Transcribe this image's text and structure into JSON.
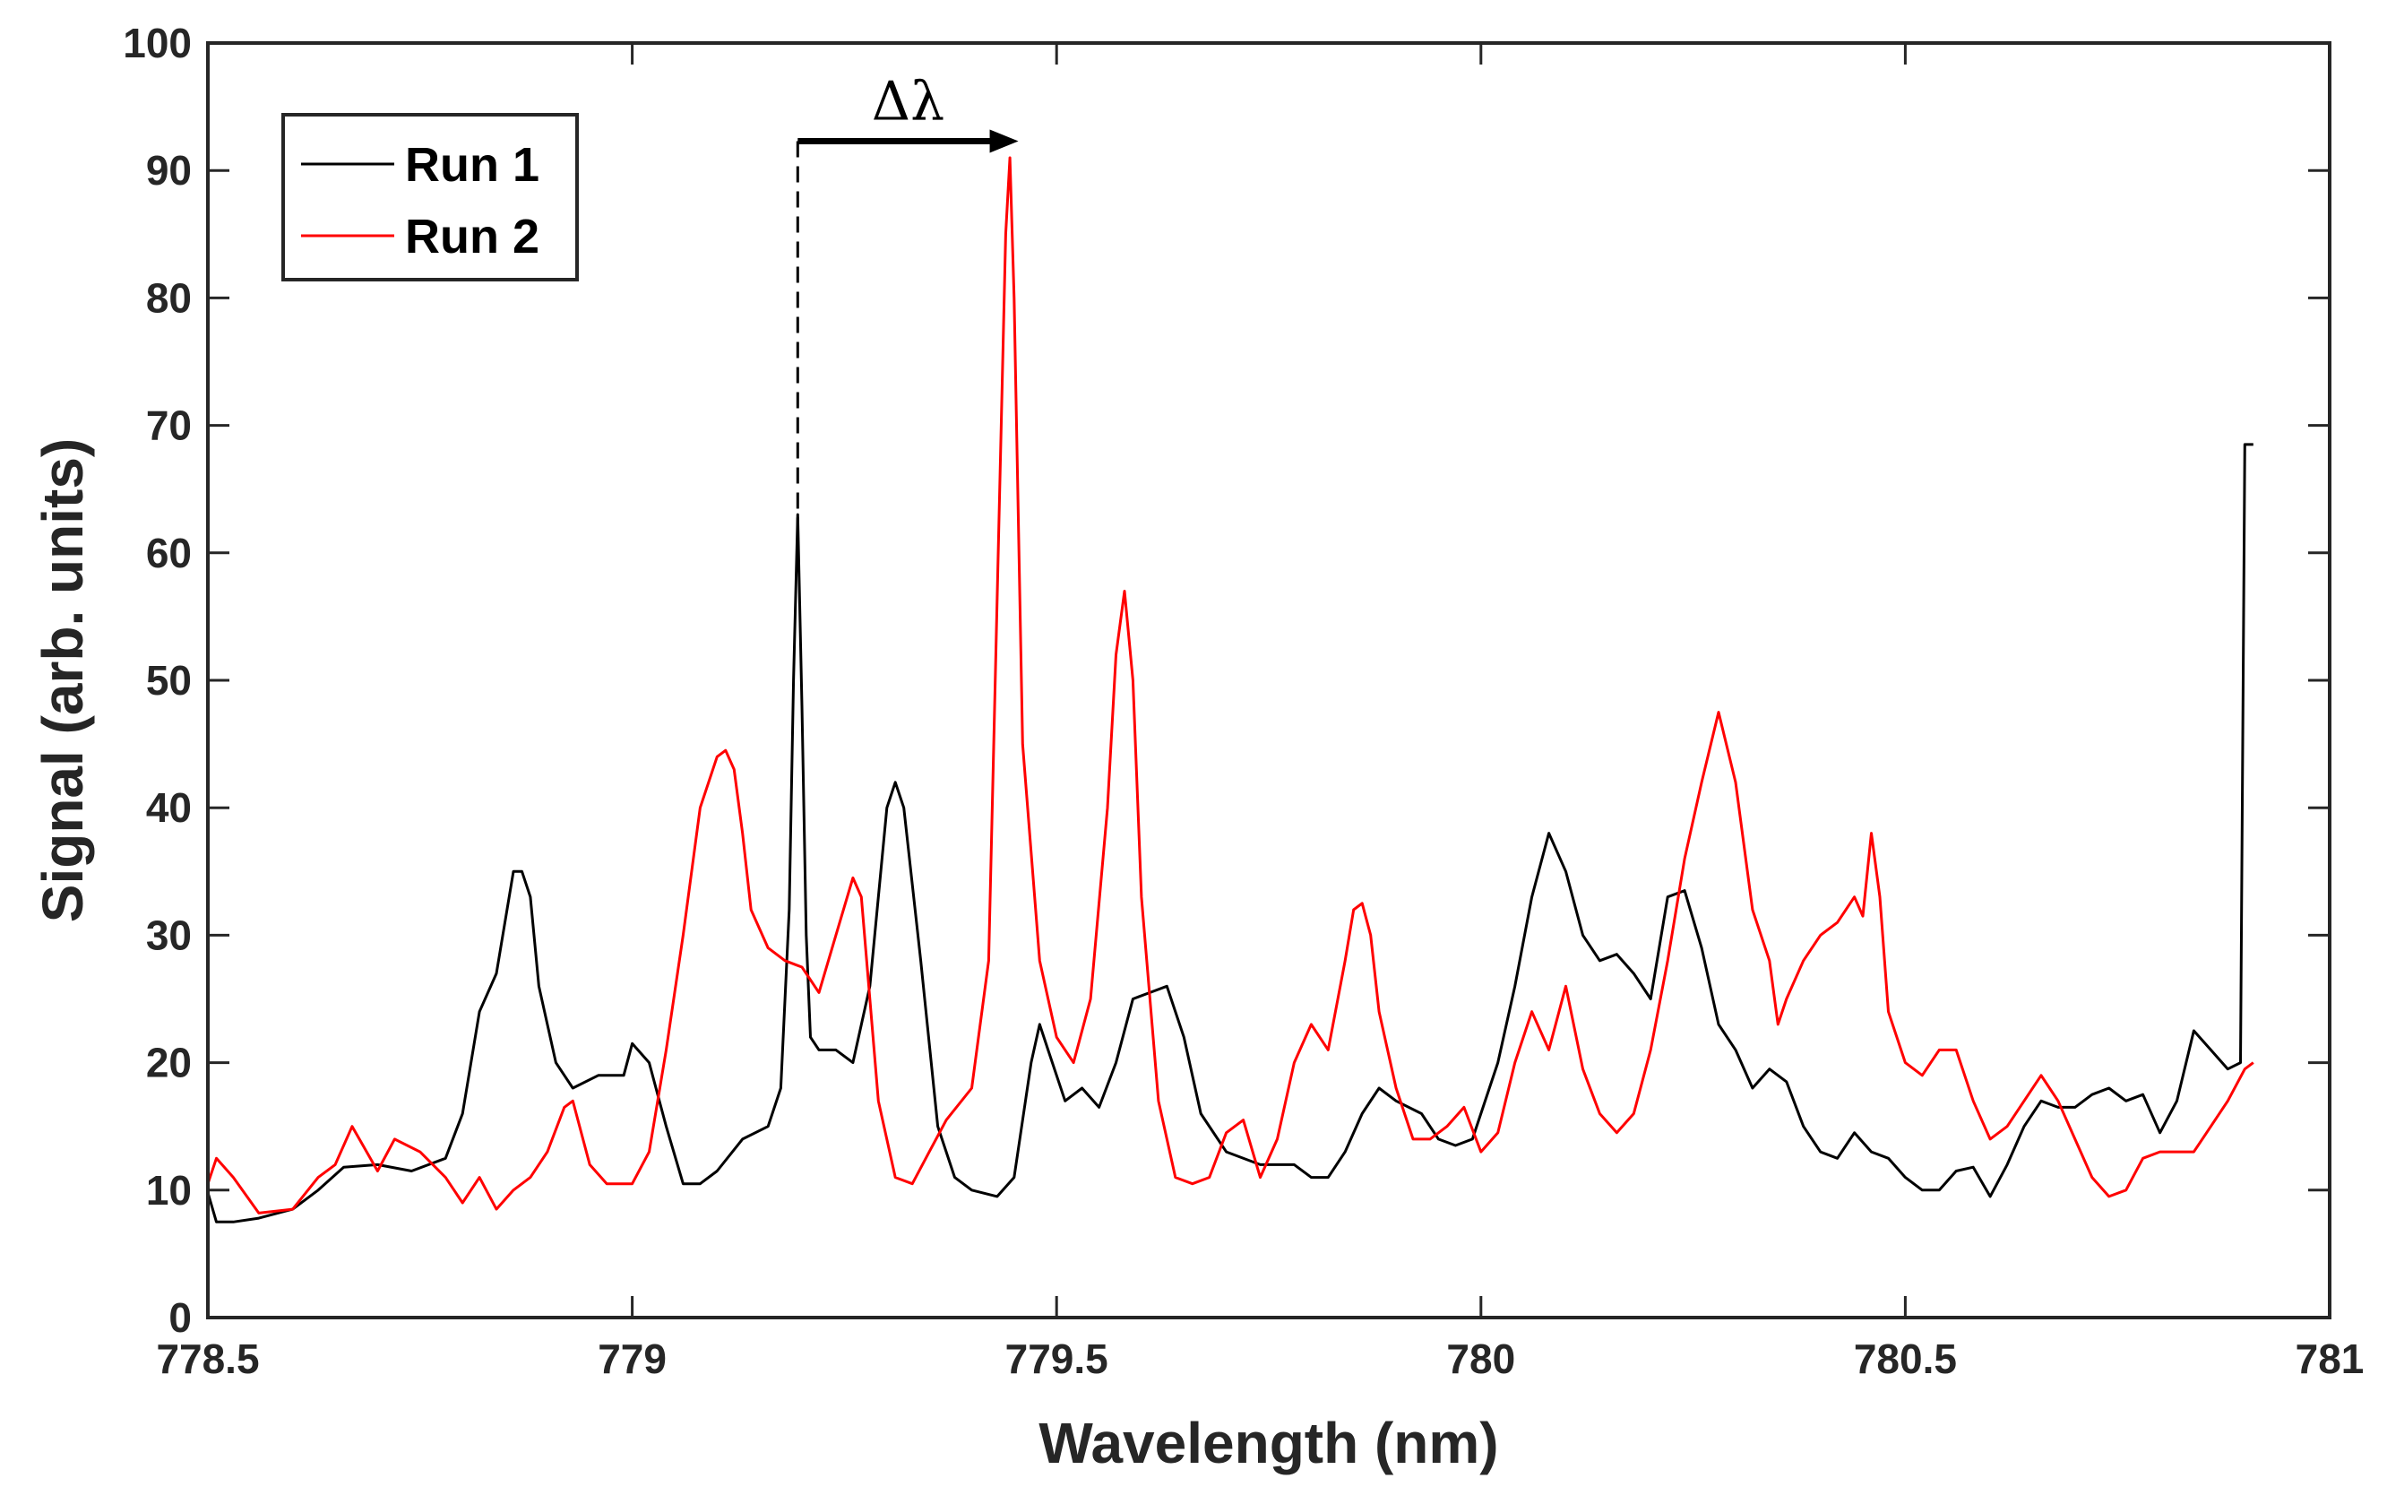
{
  "chart_data": {
    "type": "line",
    "title": "",
    "xlabel": "Wavelength (nm)",
    "ylabel": "Signal (arb. units)",
    "xlim": [
      778.5,
      781
    ],
    "ylim": [
      0,
      100
    ],
    "xticks": [
      778.5,
      779,
      779.5,
      780,
      780.5,
      781
    ],
    "xtick_labels": [
      "778.5",
      "779",
      "779.5",
      "780",
      "780.5",
      "781"
    ],
    "yticks": [
      0,
      10,
      20,
      30,
      40,
      50,
      60,
      70,
      80,
      90,
      100
    ],
    "ytick_labels": [
      "0",
      "10",
      "20",
      "30",
      "40",
      "50",
      "60",
      "70",
      "80",
      "90",
      "100"
    ],
    "grid": false,
    "legend_position": "top-left",
    "annotation": {
      "text": "Δλ",
      "x_start": 779.195,
      "x_end": 779.455,
      "y": 92.3
    },
    "series": [
      {
        "name": "Run 1",
        "color": "#000000",
        "x": [
          778.5,
          778.51,
          778.53,
          778.56,
          778.6,
          778.63,
          778.66,
          778.7,
          778.74,
          778.78,
          778.8,
          778.82,
          778.84,
          778.86,
          778.87,
          778.88,
          778.89,
          778.91,
          778.93,
          778.96,
          778.99,
          779.0,
          779.02,
          779.04,
          779.06,
          779.08,
          779.1,
          779.13,
          779.16,
          779.175,
          779.185,
          779.19,
          779.195,
          779.2,
          779.205,
          779.21,
          779.22,
          779.24,
          779.26,
          779.28,
          779.3,
          779.31,
          779.32,
          779.34,
          779.36,
          779.38,
          779.4,
          779.43,
          779.45,
          779.47,
          779.48,
          779.49,
          779.51,
          779.53,
          779.55,
          779.57,
          779.59,
          779.61,
          779.63,
          779.65,
          779.67,
          779.7,
          779.74,
          779.78,
          779.8,
          779.82,
          779.84,
          779.86,
          779.88,
          779.9,
          779.93,
          779.95,
          779.97,
          779.99,
          780.02,
          780.04,
          780.06,
          780.08,
          780.1,
          780.12,
          780.14,
          780.16,
          780.18,
          780.2,
          780.22,
          780.24,
          780.26,
          780.28,
          780.3,
          780.32,
          780.34,
          780.36,
          780.38,
          780.4,
          780.42,
          780.44,
          780.46,
          780.48,
          780.5,
          780.52,
          780.54,
          780.56,
          780.58,
          780.6,
          780.62,
          780.64,
          780.66,
          780.68,
          780.7,
          780.72,
          780.74,
          780.76,
          780.78,
          780.8,
          780.82,
          780.84,
          780.86,
          780.88,
          780.895,
          780.9,
          780.905,
          780.91
        ],
        "values": [
          9.8,
          7.5,
          7.5,
          7.8,
          8.5,
          10,
          11.8,
          12,
          11.5,
          12.5,
          16,
          24,
          27,
          35,
          35,
          33,
          26,
          20,
          18,
          19,
          19,
          21.5,
          20,
          15,
          10.5,
          10.5,
          11.5,
          14,
          15,
          18,
          32,
          50,
          63,
          48,
          30,
          22,
          21,
          21,
          20,
          26,
          40,
          42,
          40,
          28,
          15,
          11,
          10,
          9.5,
          11,
          20,
          23,
          21,
          17,
          18,
          16.5,
          20,
          25,
          25.5,
          26,
          22,
          16,
          13,
          12,
          12,
          11,
          11,
          13,
          16,
          18,
          17,
          16,
          14,
          13.5,
          14,
          20,
          26,
          33,
          38,
          35,
          30,
          28,
          28.5,
          27,
          25,
          33,
          33.5,
          29,
          23,
          21,
          18,
          19.5,
          18.5,
          15,
          13,
          12.5,
          14.5,
          13,
          12.5,
          11,
          10,
          10,
          11.5,
          11.8,
          9.5,
          12,
          15,
          17,
          16.5,
          16.5,
          17.5,
          18,
          17,
          17.5,
          14.5,
          17,
          22.5,
          21,
          19.5,
          20,
          68.5,
          68.5,
          68.5
        ]
      },
      {
        "name": "Run 2",
        "color": "#ff0000",
        "x": [
          778.5,
          778.51,
          778.53,
          778.56,
          778.6,
          778.63,
          778.65,
          778.67,
          778.7,
          778.72,
          778.75,
          778.78,
          778.8,
          778.82,
          778.84,
          778.86,
          778.88,
          778.9,
          778.92,
          778.93,
          778.95,
          778.97,
          779.0,
          779.02,
          779.04,
          779.06,
          779.08,
          779.1,
          779.11,
          779.12,
          779.13,
          779.14,
          779.16,
          779.18,
          779.2,
          779.22,
          779.24,
          779.26,
          779.27,
          779.28,
          779.29,
          779.31,
          779.33,
          779.35,
          779.37,
          779.4,
          779.42,
          779.44,
          779.445,
          779.45,
          779.46,
          779.48,
          779.5,
          779.52,
          779.54,
          779.56,
          779.57,
          779.58,
          779.59,
          779.6,
          779.62,
          779.64,
          779.66,
          779.68,
          779.7,
          779.72,
          779.74,
          779.76,
          779.78,
          779.8,
          779.82,
          779.84,
          779.85,
          779.86,
          779.87,
          779.88,
          779.9,
          779.92,
          779.94,
          779.96,
          779.98,
          780.0,
          780.02,
          780.04,
          780.06,
          780.08,
          780.1,
          780.12,
          780.14,
          780.16,
          780.18,
          780.2,
          780.22,
          780.24,
          780.26,
          780.28,
          780.3,
          780.32,
          780.34,
          780.35,
          780.36,
          780.38,
          780.4,
          780.42,
          780.44,
          780.45,
          780.46,
          780.47,
          780.48,
          780.5,
          780.52,
          780.54,
          780.56,
          780.58,
          780.6,
          780.62,
          780.64,
          780.66,
          780.68,
          780.7,
          780.72,
          780.74,
          780.76,
          780.78,
          780.8,
          780.82,
          780.84,
          780.86,
          780.88,
          780.9,
          780.91
        ],
        "values": [
          10.5,
          12.5,
          11,
          8.2,
          8.5,
          11,
          12,
          15,
          11.5,
          14,
          13,
          11,
          9,
          11,
          8.5,
          10,
          11,
          13,
          16.5,
          17,
          12,
          10.5,
          10.5,
          13,
          21,
          30,
          40,
          44,
          44.5,
          43,
          38,
          32,
          29,
          28,
          27.5,
          25.5,
          30,
          34.5,
          33,
          25,
          17,
          11,
          10.5,
          13,
          15.5,
          18,
          28,
          85,
          91,
          80,
          45,
          28,
          22,
          20,
          25,
          40,
          52,
          57,
          50,
          33,
          17,
          11,
          10.5,
          11,
          14.5,
          15.5,
          11,
          14,
          20,
          23,
          21,
          28,
          32,
          32.5,
          30,
          24,
          18,
          14,
          14,
          15,
          16.5,
          13,
          14.5,
          20,
          24,
          21,
          26,
          19.5,
          16,
          14.5,
          16,
          21,
          28,
          36,
          42,
          47.5,
          42,
          32,
          28,
          23,
          25,
          28,
          30,
          31,
          33,
          31.5,
          38,
          33,
          24,
          20,
          19,
          21,
          21,
          17,
          14,
          15,
          17,
          19,
          17,
          14,
          11,
          9.5,
          10,
          12.5,
          13,
          13,
          13,
          15,
          17,
          19.5,
          20
        ]
      }
    ]
  }
}
